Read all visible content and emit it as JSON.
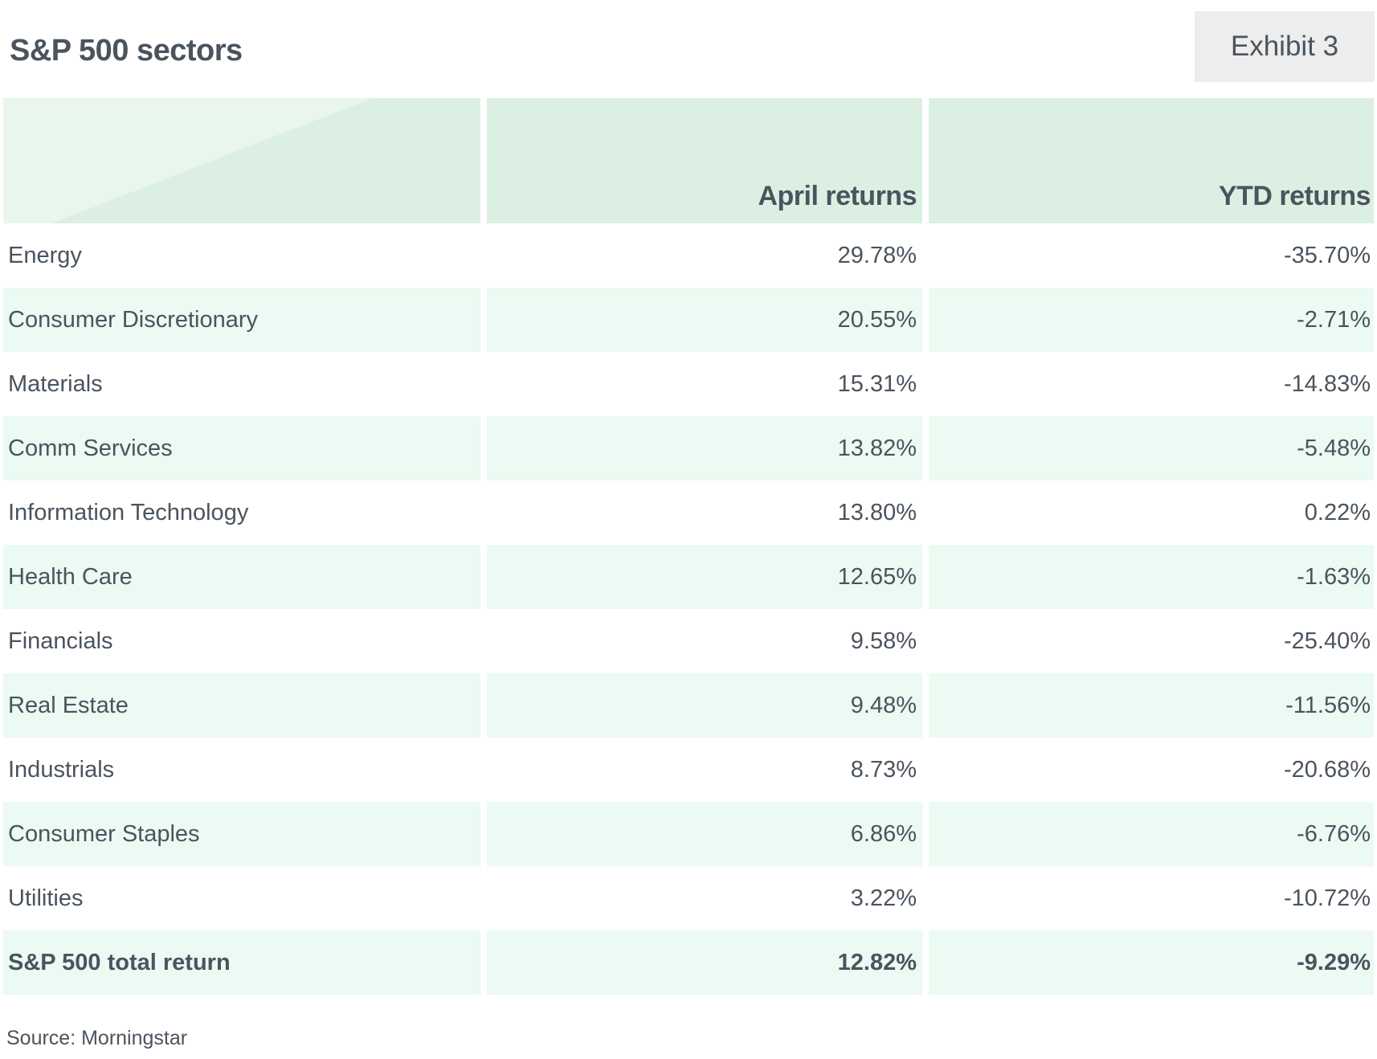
{
  "title": "S&P 500 sectors",
  "exhibit": "Exhibit 3",
  "source": "Source: Morningstar",
  "colors": {
    "header_bg": "#dbf0e2",
    "header_accent": "#e9f6ee",
    "alt_row_bg": "#ebfaf2",
    "text": "#4a545e",
    "exhibit_bg": "#ededed"
  },
  "chart_data": {
    "type": "table",
    "columns": [
      "",
      "April returns",
      "YTD returns"
    ],
    "rows": [
      {
        "sector": "Energy",
        "april": "29.78%",
        "ytd": "-35.70%"
      },
      {
        "sector": "Consumer Discretionary",
        "april": "20.55%",
        "ytd": "-2.71%"
      },
      {
        "sector": "Materials",
        "april": "15.31%",
        "ytd": "-14.83%"
      },
      {
        "sector": "Comm Services",
        "april": "13.82%",
        "ytd": "-5.48%"
      },
      {
        "sector": "Information Technology",
        "april": "13.80%",
        "ytd": "0.22%"
      },
      {
        "sector": "Health Care",
        "april": "12.65%",
        "ytd": "-1.63%"
      },
      {
        "sector": "Financials",
        "april": "9.58%",
        "ytd": "-25.40%"
      },
      {
        "sector": "Real Estate",
        "april": "9.48%",
        "ytd": "-11.56%"
      },
      {
        "sector": "Industrials",
        "april": "8.73%",
        "ytd": "-20.68%"
      },
      {
        "sector": "Consumer Staples",
        "april": "6.86%",
        "ytd": "-6.76%"
      },
      {
        "sector": "Utilities",
        "april": "3.22%",
        "ytd": "-10.72%"
      }
    ],
    "total": {
      "sector": "S&P 500 total return",
      "april": "12.82%",
      "ytd": "-9.29%"
    }
  }
}
